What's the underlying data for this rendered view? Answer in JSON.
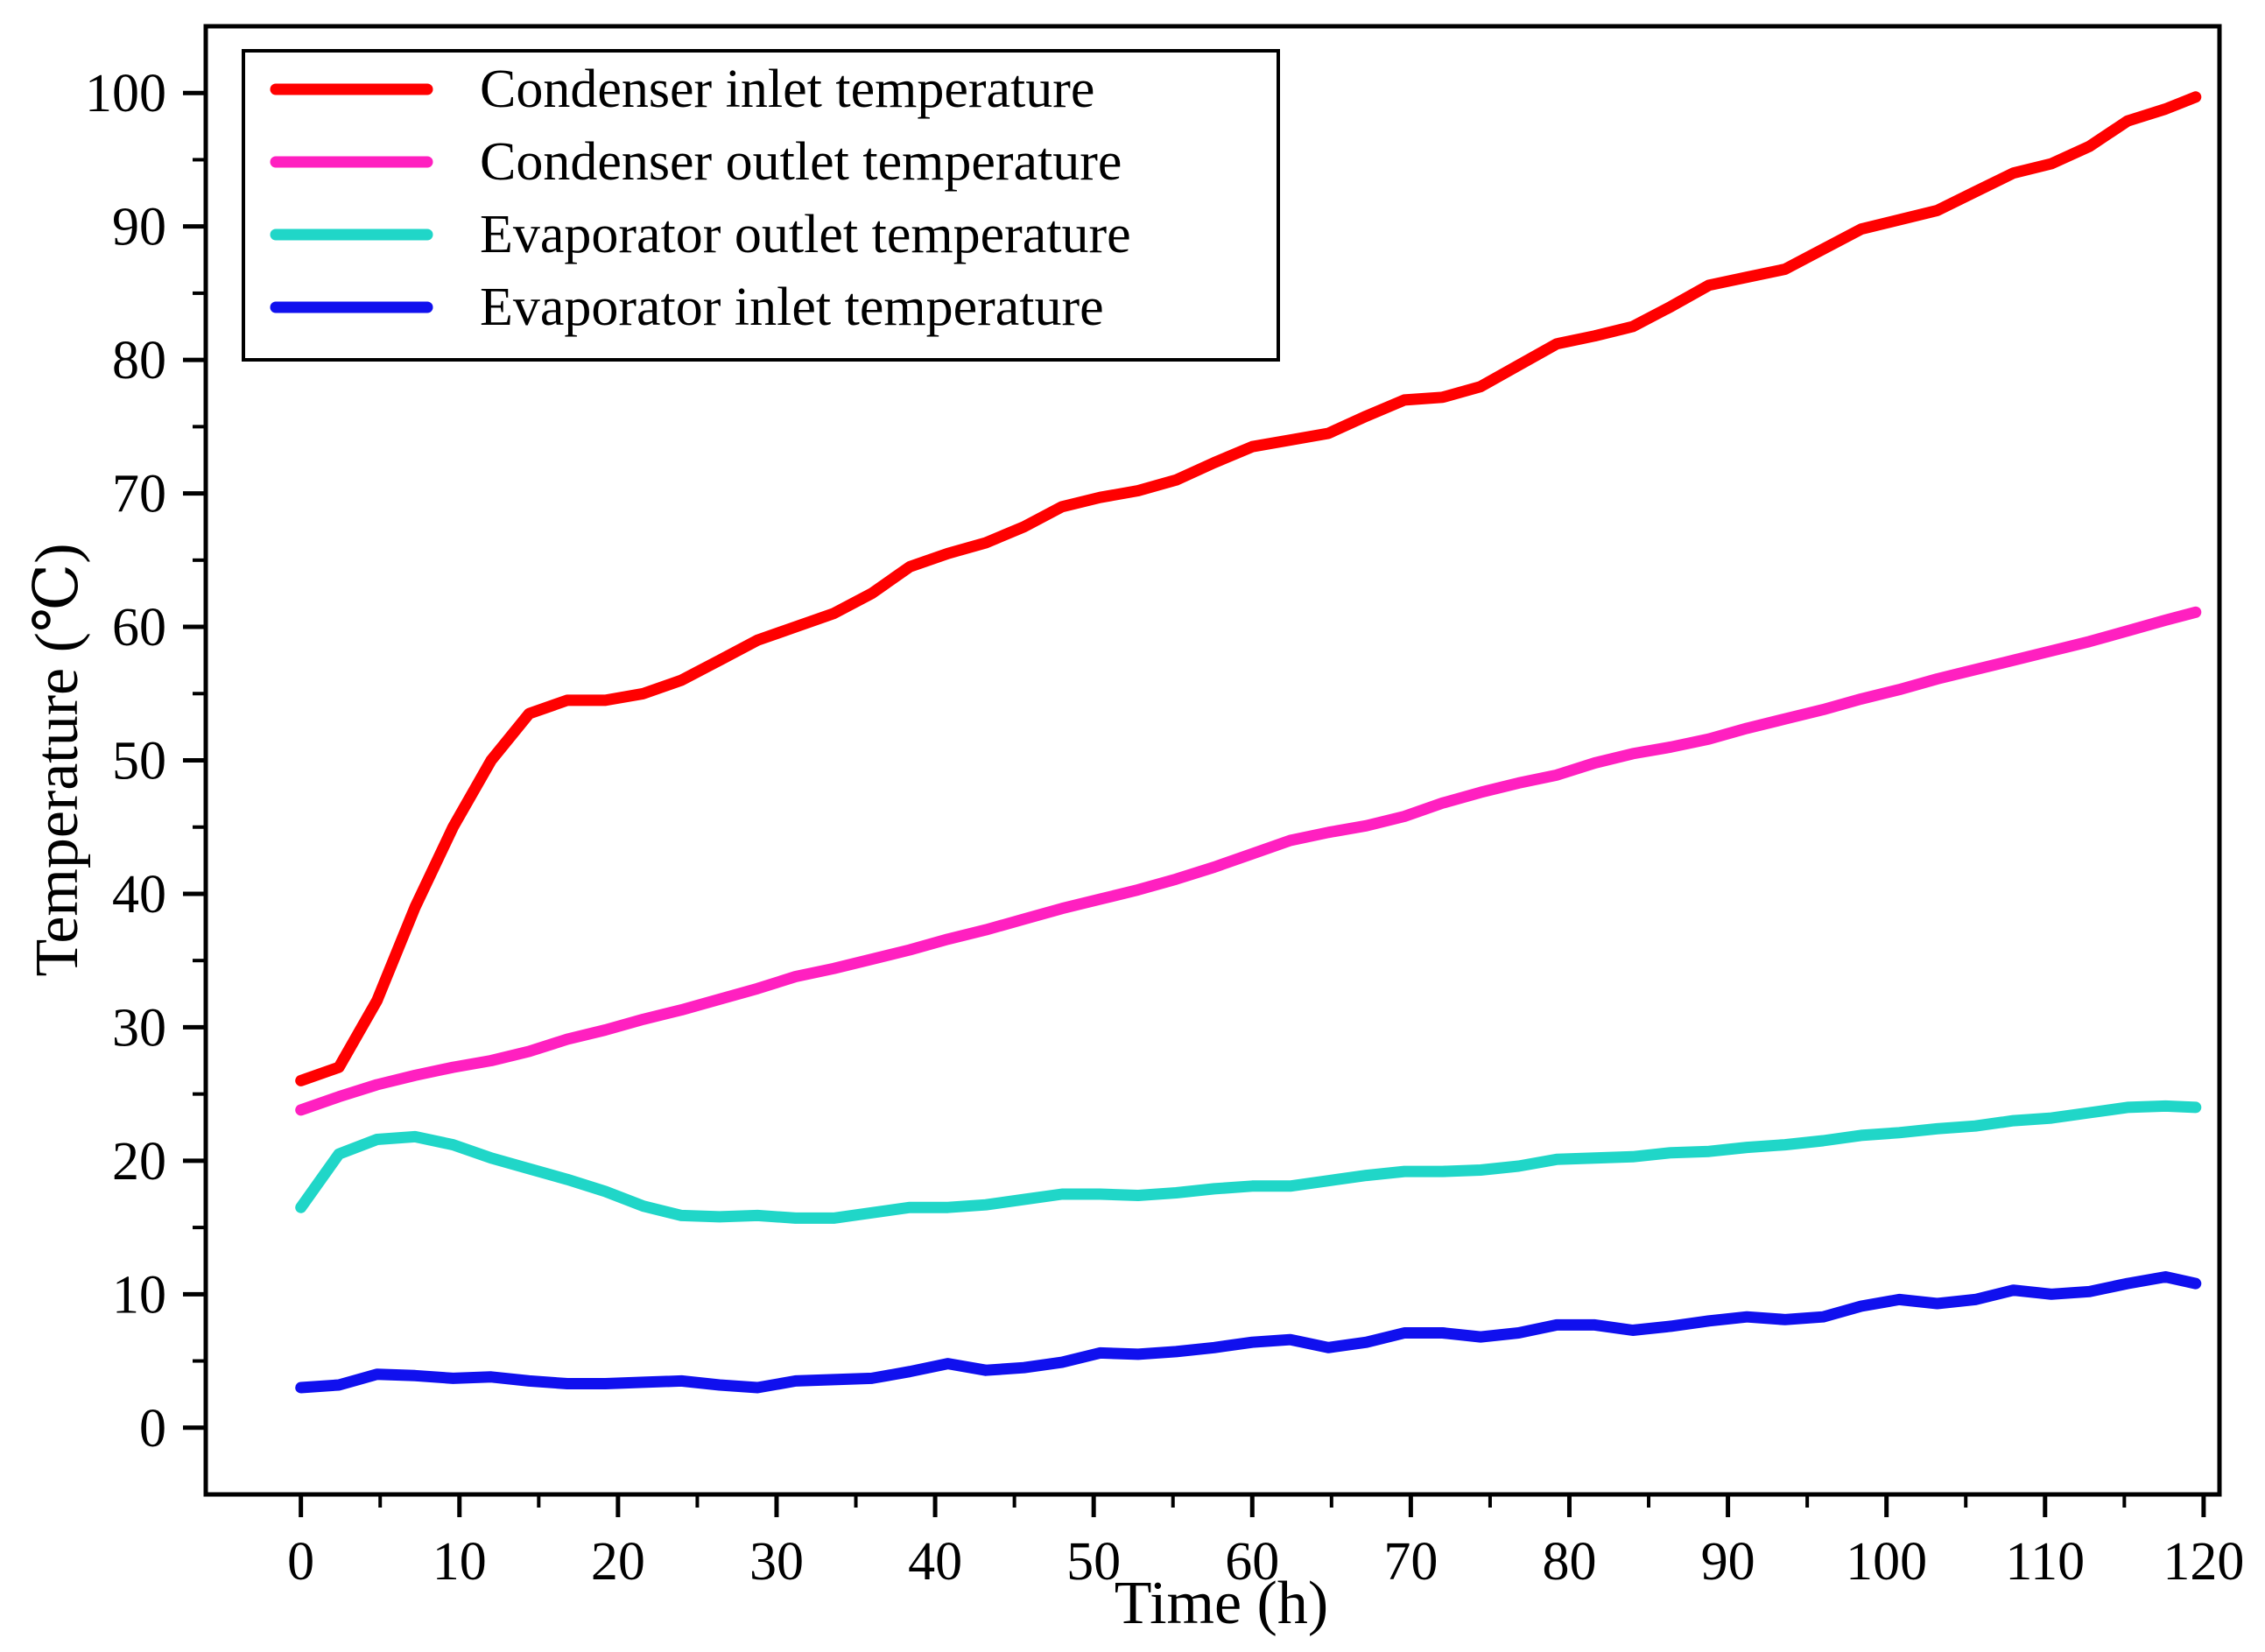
{
  "chart_data": {
    "type": "line",
    "title": "",
    "xlabel": "Time (h)",
    "ylabel": "Temperature (℃)",
    "xlim": [
      -6,
      121
    ],
    "ylim": [
      -5,
      105
    ],
    "xticks": [
      0,
      10,
      20,
      30,
      40,
      50,
      60,
      70,
      80,
      90,
      100,
      110,
      120
    ],
    "yticks": [
      0,
      10,
      20,
      30,
      40,
      50,
      60,
      70,
      80,
      90,
      100
    ],
    "grid": false,
    "legend_position": "top-left",
    "x": [
      0,
      2.4,
      4.8,
      7.2,
      9.6,
      12,
      14.4,
      16.8,
      19.2,
      21.6,
      24,
      26.4,
      28.8,
      31.2,
      33.6,
      36,
      38.4,
      40.8,
      43.2,
      45.6,
      48,
      50.4,
      52.8,
      55.2,
      57.6,
      60,
      62.4,
      64.8,
      67.2,
      69.6,
      72,
      74.4,
      76.8,
      79.2,
      81.6,
      84,
      86.4,
      88.8,
      91.2,
      93.6,
      96,
      98.4,
      100.8,
      103.2,
      105.6,
      108,
      110.4,
      112.8,
      115.2,
      117.6,
      119.5
    ],
    "series": [
      {
        "name": "Condenser inlet temperature",
        "color": "#ff0000",
        "values": [
          26,
          27,
          32,
          39,
          45,
          50,
          53.5,
          54.5,
          54.5,
          55,
          56,
          57.5,
          59,
          60,
          61,
          62.5,
          64.5,
          65.5,
          66.3,
          67.5,
          69,
          69.7,
          70.2,
          71,
          72.3,
          73.5,
          74,
          74.5,
          75.8,
          77,
          77.2,
          78,
          79.6,
          81.2,
          81.8,
          82.5,
          84,
          85.6,
          86.2,
          86.8,
          88.3,
          89.8,
          90.5,
          91.2,
          92.6,
          94,
          94.7,
          96,
          97.9,
          98.8,
          99.7
        ]
      },
      {
        "name": "Condenser outlet temperature",
        "color": "#ff20c0",
        "values": [
          23.8,
          24.8,
          25.7,
          26.4,
          27,
          27.5,
          28.2,
          29.1,
          29.8,
          30.6,
          31.3,
          32.1,
          32.9,
          33.8,
          34.4,
          35.1,
          35.8,
          36.6,
          37.3,
          38.1,
          38.9,
          39.6,
          40.3,
          41.1,
          42,
          43,
          44,
          44.6,
          45.1,
          45.8,
          46.8,
          47.6,
          48.3,
          48.9,
          49.8,
          50.5,
          51,
          51.6,
          52.4,
          53.1,
          53.8,
          54.6,
          55.3,
          56.1,
          56.8,
          57.5,
          58.2,
          58.9,
          59.7,
          60.5,
          61.1
        ]
      },
      {
        "name": "Evaporator outlet temperature",
        "color": "#20d6c8",
        "values": [
          16.5,
          20.5,
          21.6,
          21.8,
          21.2,
          20.2,
          19.4,
          18.6,
          17.7,
          16.6,
          15.9,
          15.8,
          15.9,
          15.7,
          15.7,
          16.1,
          16.5,
          16.5,
          16.7,
          17.1,
          17.5,
          17.5,
          17.4,
          17.6,
          17.9,
          18.1,
          18.1,
          18.5,
          18.9,
          19.2,
          19.2,
          19.3,
          19.6,
          20.1,
          20.2,
          20.3,
          20.6,
          20.7,
          21,
          21.2,
          21.5,
          21.9,
          22.1,
          22.4,
          22.6,
          23.0,
          23.2,
          23.6,
          24,
          24.1,
          24.0
        ]
      },
      {
        "name": "Evaporator inlet temperature",
        "color": "#1010ee",
        "values": [
          3,
          3.2,
          4,
          3.9,
          3.7,
          3.8,
          3.5,
          3.3,
          3.3,
          3.4,
          3.5,
          3.2,
          3,
          3.5,
          3.6,
          3.7,
          4.2,
          4.8,
          4.3,
          4.5,
          4.9,
          5.6,
          5.5,
          5.7,
          6,
          6.4,
          6.6,
          6,
          6.4,
          7.1,
          7.1,
          6.8,
          7.1,
          7.7,
          7.7,
          7.3,
          7.6,
          8,
          8.3,
          8.1,
          8.3,
          9.1,
          9.6,
          9.3,
          9.6,
          10.3,
          10,
          10.2,
          10.8,
          11.3,
          10.8
        ]
      }
    ]
  }
}
